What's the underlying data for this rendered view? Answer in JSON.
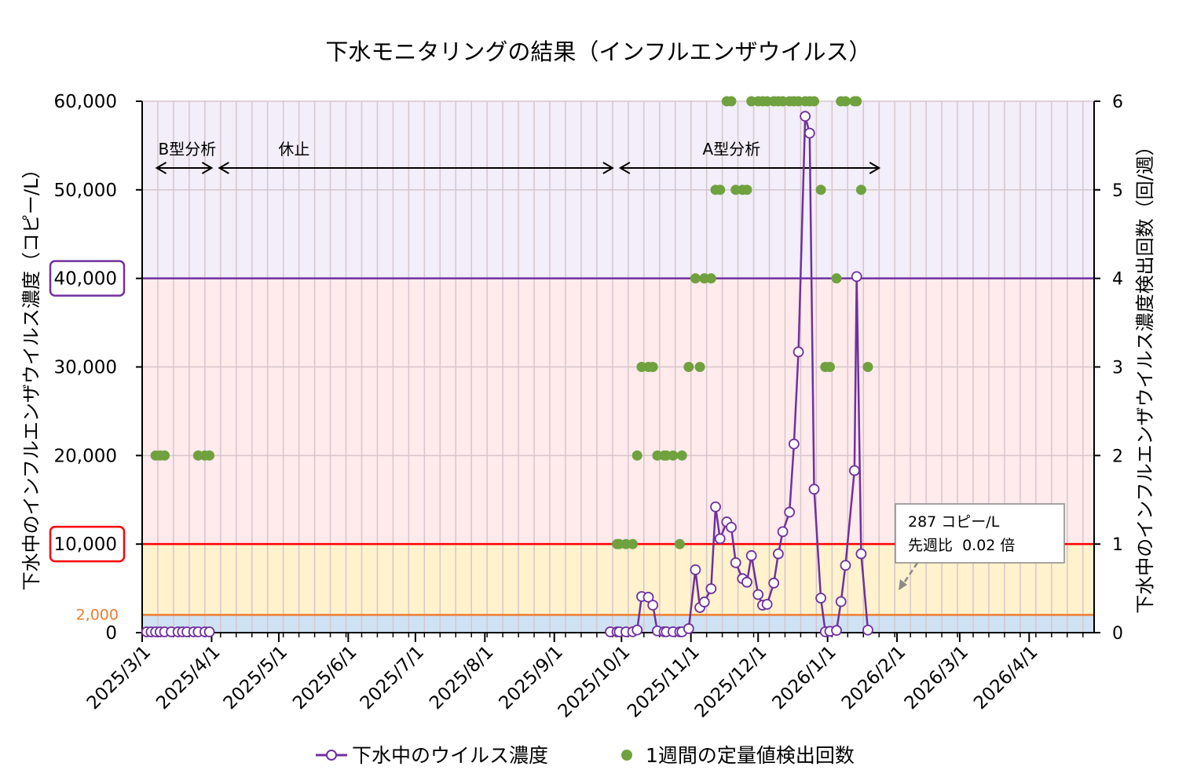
{
  "chart_data": {
    "type": "line",
    "title": "下水モニタリングの結果（インフルエンザウイルス）",
    "ylabel_left": "下水中のインフルエンザウイルス濃度（コピー/L）",
    "ylabel_right": "下水中のインフルエンザウイルス濃度検出回数（回/週）",
    "xlim": [
      "2025-03-01",
      "2026-04-30"
    ],
    "ylim_left": [
      0,
      60000
    ],
    "ylim_right": [
      0,
      6
    ],
    "grid": "vertical weekly, horizontal at left ticks",
    "legend_position": "bottom",
    "x_tick_labels": [
      "2025/3/1",
      "2025/4/1",
      "2025/5/1",
      "2025/6/1",
      "2025/7/1",
      "2025/8/1",
      "2025/9/1",
      "2025/10/1",
      "2025/11/1",
      "2025/12/1",
      "2026/1/1",
      "2026/2/1",
      "2026/3/1",
      "2026/4/1"
    ],
    "x_tick_dates": [
      "2025-03-01",
      "2025-04-01",
      "2025-05-01",
      "2025-06-01",
      "2025-07-01",
      "2025-08-01",
      "2025-09-01",
      "2025-10-01",
      "2025-11-01",
      "2025-12-01",
      "2026-01-01",
      "2026-02-01",
      "2026-03-01",
      "2026-04-01"
    ],
    "y_left_ticks": [
      {
        "value": 0,
        "label": "0"
      },
      {
        "value": 10000,
        "label": "10,000",
        "boxed": true,
        "box_color": "#ff0000"
      },
      {
        "value": 20000,
        "label": "20,000"
      },
      {
        "value": 30000,
        "label": "30,000"
      },
      {
        "value": 40000,
        "label": "40,000",
        "boxed": true,
        "box_color": "#7030a0"
      },
      {
        "value": 50000,
        "label": "50,000"
      },
      {
        "value": 60000,
        "label": "60,000"
      }
    ],
    "extra_left_label": {
      "value": 2000,
      "label": "2,000",
      "color": "#ed7d31"
    },
    "y_right_ticks": [
      "0",
      "1",
      "2",
      "3",
      "4",
      "5",
      "6"
    ],
    "bands": [
      {
        "from": 0,
        "to": 2000,
        "color": "#cfe2f3"
      },
      {
        "from": 2000,
        "to": 10000,
        "color": "#fff2cc"
      },
      {
        "from": 10000,
        "to": 40000,
        "color": "#ffeaec"
      },
      {
        "from": 40000,
        "to": 60000,
        "color": "#f2eefa"
      }
    ],
    "threshold_lines": [
      {
        "value": 2000,
        "color": "#ed7d31"
      },
      {
        "value": 10000,
        "color": "#ff0000"
      },
      {
        "value": 40000,
        "color": "#7030a0"
      }
    ],
    "periods": [
      {
        "label": "B型分析",
        "from": "2025-03-04",
        "to": "2025-04-01"
      },
      {
        "label": "休止",
        "from": "2025-04-01",
        "to": "2025-09-27"
      },
      {
        "label": "A型分析",
        "from": "2025-09-27",
        "to": "2026-01-24"
      }
    ],
    "callout": {
      "line1": "287 コピー/L",
      "line2": "先週比  0.02 倍"
    },
    "series": [
      {
        "name": "下水中のウイルス濃度",
        "axis": "left",
        "color": "#7030a0",
        "points": [
          [
            "2025-03-03",
            0
          ],
          [
            "2025-03-05",
            0
          ],
          [
            "2025-03-07",
            0
          ],
          [
            "2025-03-09",
            0
          ],
          [
            "2025-03-11",
            0
          ],
          [
            "2025-03-14",
            0
          ],
          [
            "2025-03-17",
            0
          ],
          [
            "2025-03-19",
            0
          ],
          [
            "2025-03-21",
            0
          ],
          [
            "2025-03-24",
            0
          ],
          [
            "2025-03-26",
            0
          ],
          [
            "2025-03-29",
            0
          ],
          [
            "2025-03-31",
            0
          ],
          null,
          [
            "2025-09-26",
            0
          ],
          [
            "2025-09-29",
            0
          ],
          [
            "2025-09-30",
            0
          ],
          [
            "2025-10-03",
            0
          ],
          [
            "2025-10-06",
            100
          ],
          [
            "2025-10-08",
            300
          ],
          [
            "2025-10-10",
            4080
          ],
          [
            "2025-10-13",
            4000
          ],
          [
            "2025-10-15",
            3100
          ],
          [
            "2025-10-17",
            200
          ],
          [
            "2025-10-20",
            100
          ],
          [
            "2025-10-21",
            100
          ],
          [
            "2025-10-24",
            100
          ],
          [
            "2025-10-27",
            0
          ],
          [
            "2025-10-28",
            0
          ],
          [
            "2025-10-31",
            450
          ],
          [
            "2025-11-03",
            7100
          ],
          [
            "2025-11-05",
            2840
          ],
          [
            "2025-11-07",
            3460
          ],
          [
            "2025-11-10",
            4960
          ],
          [
            "2025-11-12",
            14200
          ],
          [
            "2025-11-14",
            10600
          ],
          [
            "2025-11-17",
            12500
          ],
          [
            "2025-11-19",
            11900
          ],
          [
            "2025-11-21",
            7900
          ],
          [
            "2025-11-24",
            6100
          ],
          [
            "2025-11-26",
            5700
          ],
          [
            "2025-11-28",
            8700
          ],
          [
            "2025-12-01",
            4300
          ],
          [
            "2025-12-03",
            3100
          ],
          [
            "2025-12-05",
            3200
          ],
          [
            "2025-12-08",
            5600
          ],
          [
            "2025-12-10",
            8900
          ],
          [
            "2025-12-12",
            11400
          ],
          [
            "2025-12-15",
            13600
          ],
          [
            "2025-12-17",
            21300
          ],
          [
            "2025-12-19",
            31700
          ],
          [
            "2025-12-22",
            58300
          ],
          [
            "2025-12-24",
            56400
          ],
          [
            "2025-12-26",
            16200
          ],
          [
            "2025-12-29",
            3900
          ],
          [
            "2025-12-31",
            100
          ],
          [
            "2026-01-02",
            150
          ],
          [
            "2026-01-05",
            250
          ],
          [
            "2026-01-07",
            3500
          ],
          [
            "2026-01-09",
            7600
          ],
          [
            "2026-01-13",
            18300
          ],
          [
            "2026-01-14",
            40200
          ],
          [
            "2026-01-16",
            8900
          ],
          [
            "2026-01-19",
            287
          ]
        ]
      },
      {
        "name": "1週間の定量値検出回数",
        "axis": "right",
        "color": "#70a13f",
        "points": [
          [
            "2025-03-07",
            2
          ],
          [
            "2025-03-09",
            2
          ],
          [
            "2025-03-11",
            2
          ],
          [
            "2025-03-26",
            2
          ],
          [
            "2025-03-29",
            2
          ],
          [
            "2025-03-31",
            2
          ],
          [
            "2025-09-29",
            1
          ],
          [
            "2025-09-30",
            1
          ],
          [
            "2025-10-03",
            1
          ],
          [
            "2025-10-06",
            1
          ],
          [
            "2025-10-08",
            2
          ],
          [
            "2025-10-10",
            3
          ],
          [
            "2025-10-13",
            3
          ],
          [
            "2025-10-15",
            3
          ],
          [
            "2025-10-17",
            2
          ],
          [
            "2025-10-20",
            2
          ],
          [
            "2025-10-21",
            2
          ],
          [
            "2025-10-24",
            2
          ],
          [
            "2025-10-27",
            1
          ],
          [
            "2025-10-28",
            2
          ],
          [
            "2025-10-31",
            3
          ],
          [
            "2025-11-03",
            4
          ],
          [
            "2025-11-05",
            3
          ],
          [
            "2025-11-07",
            4
          ],
          [
            "2025-11-10",
            4
          ],
          [
            "2025-11-12",
            5
          ],
          [
            "2025-11-14",
            5
          ],
          [
            "2025-11-17",
            6
          ],
          [
            "2025-11-19",
            6
          ],
          [
            "2025-11-21",
            5
          ],
          [
            "2025-11-24",
            5
          ],
          [
            "2025-11-26",
            5
          ],
          [
            "2025-11-28",
            6
          ],
          [
            "2025-12-01",
            6
          ],
          [
            "2025-12-03",
            6
          ],
          [
            "2025-12-05",
            6
          ],
          [
            "2025-12-08",
            6
          ],
          [
            "2025-12-10",
            6
          ],
          [
            "2025-12-12",
            6
          ],
          [
            "2025-12-15",
            6
          ],
          [
            "2025-12-17",
            6
          ],
          [
            "2025-12-19",
            6
          ],
          [
            "2025-12-22",
            6
          ],
          [
            "2025-12-24",
            6
          ],
          [
            "2025-12-26",
            6
          ],
          [
            "2025-12-29",
            5
          ],
          [
            "2025-12-31",
            3
          ],
          [
            "2026-01-02",
            3
          ],
          [
            "2026-01-05",
            4
          ],
          [
            "2026-01-07",
            6
          ],
          [
            "2026-01-09",
            6
          ],
          [
            "2026-01-13",
            6
          ],
          [
            "2026-01-14",
            6
          ],
          [
            "2026-01-16",
            5
          ],
          [
            "2026-01-19",
            3
          ]
        ]
      }
    ]
  }
}
